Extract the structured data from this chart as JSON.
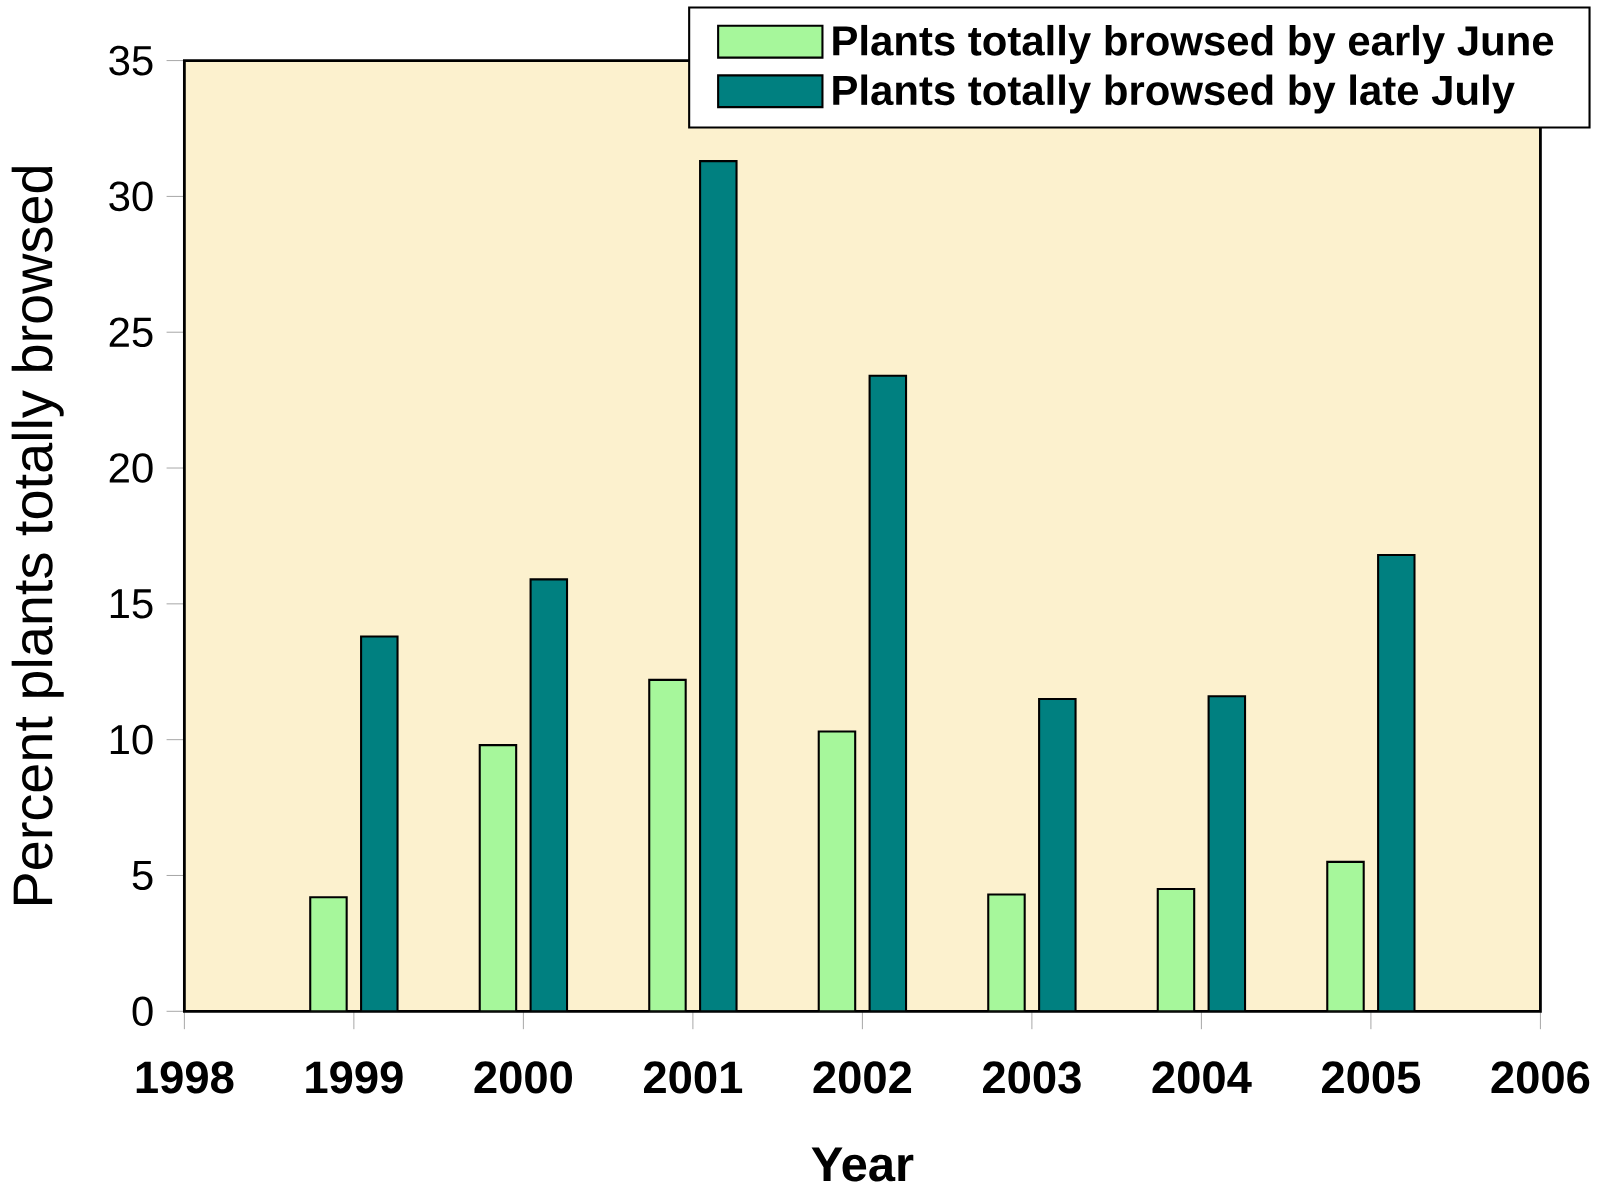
{
  "chart_data": {
    "type": "bar",
    "xlabel": "Year",
    "ylabel": "Percent plants totally browsed",
    "x": [
      1999,
      2000,
      2001,
      2002,
      2003,
      2004,
      2005
    ],
    "series": [
      {
        "name": "Plants totally browsed by early June",
        "color": "#a6f79b",
        "values": [
          4.2,
          9.8,
          12.2,
          10.3,
          4.3,
          4.5,
          5.5
        ]
      },
      {
        "name": "Plants totally browsed by late July",
        "color": "#008080",
        "values": [
          13.8,
          15.9,
          31.3,
          23.4,
          11.5,
          11.6,
          16.8
        ]
      }
    ],
    "xlim": [
      1998,
      2006
    ],
    "xticks": [
      1998,
      1999,
      2000,
      2001,
      2002,
      2003,
      2004,
      2005,
      2006
    ],
    "ylim": [
      0,
      35
    ],
    "yticks": [
      0,
      5,
      10,
      15,
      20,
      25,
      30,
      35
    ],
    "legend": "top right"
  }
}
